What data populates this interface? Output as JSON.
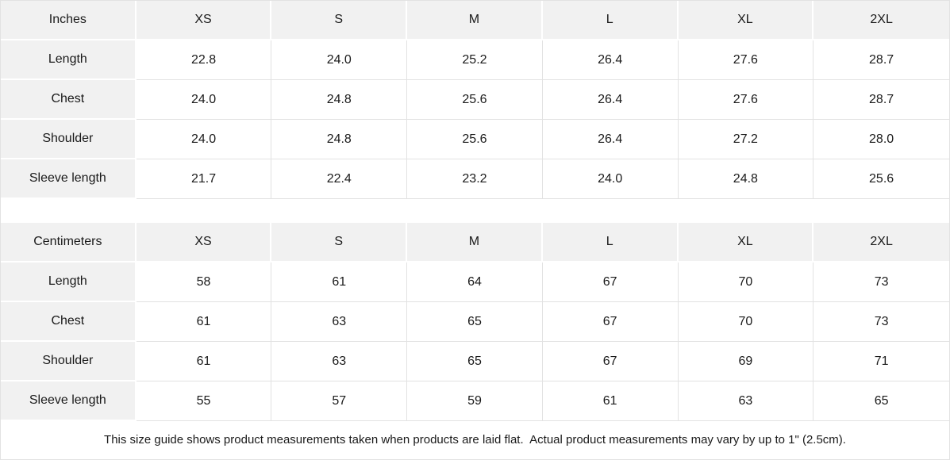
{
  "style": {
    "header_cell_bg": "#f1f1f1",
    "grid_line_color": "#e2e2e2",
    "outer_border_color": "#e2e2e2",
    "text_color": "#1a1a1a",
    "background": "#ffffff"
  },
  "inches_table": {
    "unit_label": "Inches",
    "size_headers": [
      "XS",
      "S",
      "M",
      "L",
      "XL",
      "2XL"
    ],
    "rows": [
      {
        "label": "Length",
        "values": [
          "22.8",
          "24.0",
          "25.2",
          "26.4",
          "27.6",
          "28.7"
        ]
      },
      {
        "label": "Chest",
        "values": [
          "24.0",
          "24.8",
          "25.6",
          "26.4",
          "27.6",
          "28.7"
        ]
      },
      {
        "label": "Shoulder",
        "values": [
          "24.0",
          "24.8",
          "25.6",
          "26.4",
          "27.2",
          "28.0"
        ]
      },
      {
        "label": "Sleeve length",
        "values": [
          "21.7",
          "22.4",
          "23.2",
          "24.0",
          "24.8",
          "25.6"
        ]
      }
    ]
  },
  "centimeters_table": {
    "unit_label": "Centimeters",
    "size_headers": [
      "XS",
      "S",
      "M",
      "L",
      "XL",
      "2XL"
    ],
    "rows": [
      {
        "label": "Length",
        "values": [
          "58",
          "61",
          "64",
          "67",
          "70",
          "73"
        ]
      },
      {
        "label": "Chest",
        "values": [
          "61",
          "63",
          "65",
          "67",
          "70",
          "73"
        ]
      },
      {
        "label": "Shoulder",
        "values": [
          "61",
          "63",
          "65",
          "67",
          "69",
          "71"
        ]
      },
      {
        "label": "Sleeve length",
        "values": [
          "55",
          "57",
          "59",
          "61",
          "63",
          "65"
        ]
      }
    ]
  },
  "footer": {
    "note": "This size guide shows product measurements taken when products are laid flat.  Actual product measurements may vary by up to 1\" (2.5cm)."
  }
}
